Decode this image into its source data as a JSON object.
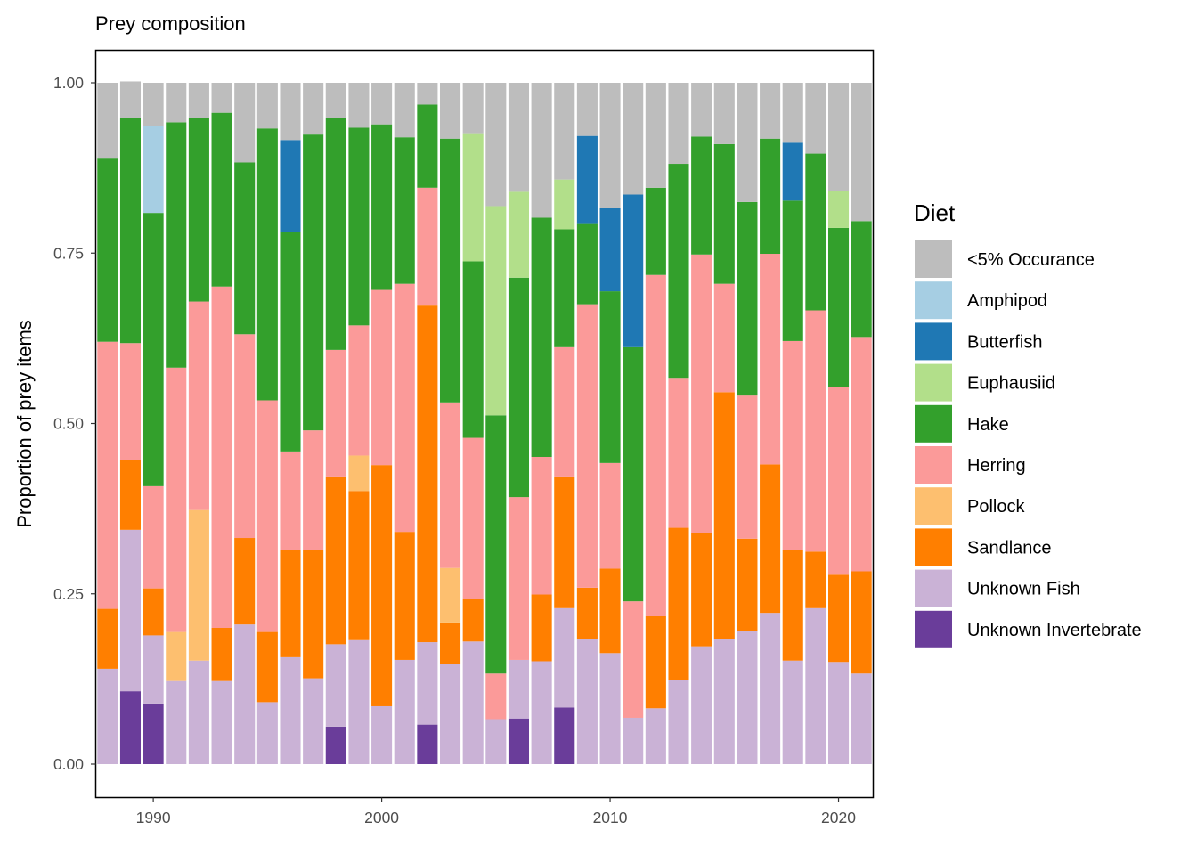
{
  "chart_data": {
    "type": "bar",
    "stacked": true,
    "title": "Prey composition",
    "xlabel": "",
    "ylabel": "Proportion of prey items",
    "xlim": [
      1987.5,
      2021.5
    ],
    "ylim": [
      0,
      1
    ],
    "x_ticks": [
      "1990",
      "2000",
      "2010",
      "2020"
    ],
    "y_ticks": [
      "0.00",
      "0.25",
      "0.50",
      "0.75",
      "1.00"
    ],
    "legend_title": "Diet",
    "legend_position": "right",
    "grid": false,
    "x": [
      1988,
      1989,
      1990,
      1991,
      1992,
      1993,
      1994,
      1995,
      1996,
      1997,
      1998,
      1999,
      2000,
      2001,
      2002,
      2003,
      2004,
      2005,
      2006,
      2007,
      2008,
      2009,
      2010,
      2011,
      2012,
      2013,
      2014,
      2015,
      2016,
      2017,
      2018,
      2019,
      2020,
      2021
    ],
    "series": [
      {
        "name": "Unknown Invertebrate",
        "color": "#6a3d9a",
        "values": [
          0,
          0.107,
          0.089,
          0,
          0,
          0,
          0,
          0,
          0,
          0,
          0.055,
          0,
          0,
          0,
          0.058,
          0,
          0,
          0,
          0.067,
          0,
          0.083,
          0,
          0,
          0,
          0,
          0,
          0,
          0,
          0,
          0,
          0,
          0,
          0,
          0
        ]
      },
      {
        "name": "Unknown Fish",
        "color": "#cab2d6",
        "values": [
          0.14,
          0.237,
          0.1,
          0.122,
          0.152,
          0.122,
          0.205,
          0.091,
          0.157,
          0.126,
          0.121,
          0.182,
          0.085,
          0.153,
          0.121,
          0.147,
          0.18,
          0.066,
          0.086,
          0.151,
          0.146,
          0.183,
          0.163,
          0.068,
          0.082,
          0.124,
          0.173,
          0.184,
          0.195,
          0.222,
          0.152,
          0.229,
          0.15,
          0.133
        ]
      },
      {
        "name": "Sandlance",
        "color": "#ff7f00",
        "values": [
          0.088,
          0.102,
          0.069,
          0,
          0,
          0.078,
          0.127,
          0.103,
          0.158,
          0.188,
          0.245,
          0.219,
          0.354,
          0.188,
          0.494,
          0.061,
          0.063,
          0,
          0,
          0.098,
          0.192,
          0.076,
          0.124,
          0,
          0.135,
          0.223,
          0.166,
          0.362,
          0.136,
          0.218,
          0.162,
          0.083,
          0.128,
          0.15
        ]
      },
      {
        "name": "Pollock",
        "color": "#fdbf6f",
        "values": [
          0,
          0,
          0,
          0.072,
          0.221,
          0,
          0,
          0,
          0,
          0,
          0,
          0.052,
          0,
          0,
          0,
          0.08,
          0,
          0,
          0,
          0,
          0,
          0,
          0,
          0,
          0,
          0,
          0,
          0,
          0,
          0,
          0,
          0,
          0,
          0
        ]
      },
      {
        "name": "Herring",
        "color": "#fb9a99",
        "values": [
          0.392,
          0.172,
          0.15,
          0.388,
          0.306,
          0.501,
          0.299,
          0.34,
          0.144,
          0.176,
          0.187,
          0.191,
          0.257,
          0.364,
          0.173,
          0.243,
          0.236,
          0.067,
          0.239,
          0.202,
          0.191,
          0.416,
          0.155,
          0.171,
          0.501,
          0.22,
          0.409,
          0.159,
          0.21,
          0.309,
          0.307,
          0.354,
          0.275,
          0.344
        ]
      },
      {
        "name": "Hake",
        "color": "#33a02c",
        "values": [
          0.27,
          0.331,
          0.401,
          0.36,
          0.269,
          0.255,
          0.252,
          0.399,
          0.322,
          0.434,
          0.341,
          0.29,
          0.243,
          0.215,
          0.122,
          0.387,
          0.259,
          0.379,
          0.322,
          0.351,
          0.173,
          0.119,
          0.252,
          0.373,
          0.128,
          0.314,
          0.173,
          0.205,
          0.284,
          0.169,
          0.206,
          0.23,
          0.234,
          0.17
        ]
      },
      {
        "name": "Euphausiid",
        "color": "#b2df8a",
        "values": [
          0,
          0,
          0,
          0,
          0,
          0,
          0,
          0,
          0,
          0,
          0,
          0,
          0,
          0,
          0,
          0,
          0.188,
          0.307,
          0.126,
          0,
          0.073,
          0,
          0,
          0,
          0,
          0,
          0,
          0,
          0,
          0,
          0,
          0,
          0.054,
          0
        ]
      },
      {
        "name": "Butterfish",
        "color": "#1f78b4",
        "values": [
          0,
          0,
          0,
          0,
          0,
          0,
          0,
          0,
          0.135,
          0,
          0,
          0,
          0,
          0,
          0,
          0,
          0,
          0,
          0,
          0,
          0,
          0.128,
          0.122,
          0.224,
          0,
          0,
          0,
          0,
          0,
          0,
          0.085,
          0,
          0,
          0
        ]
      },
      {
        "name": "Amphipod",
        "color": "#a6cee3",
        "values": [
          0,
          0,
          0.127,
          0,
          0,
          0,
          0,
          0,
          0,
          0,
          0,
          0,
          0,
          0,
          0,
          0,
          0,
          0,
          0,
          0,
          0,
          0,
          0,
          0,
          0,
          0,
          0,
          0,
          0,
          0,
          0,
          0,
          0,
          0
        ]
      },
      {
        "name": "<5% Occurance",
        "color": "#bdbdbd",
        "values": [
          0.11,
          0.053,
          0.064,
          0.058,
          0.052,
          0.044,
          0.117,
          0.067,
          0.084,
          0.076,
          0.051,
          0.066,
          0.061,
          0.08,
          0.032,
          0.082,
          0.074,
          0.181,
          0.16,
          0.198,
          0.142,
          0.078,
          0.184,
          0.164,
          0.154,
          0.119,
          0.079,
          0.09,
          0.175,
          0.082,
          0.088,
          0.104,
          0.159,
          0.203
        ]
      }
    ],
    "legend_order": [
      "<5% Occurance",
      "Amphipod",
      "Butterfish",
      "Euphausiid",
      "Hake",
      "Herring",
      "Pollock",
      "Sandlance",
      "Unknown Fish",
      "Unknown Invertebrate"
    ]
  }
}
